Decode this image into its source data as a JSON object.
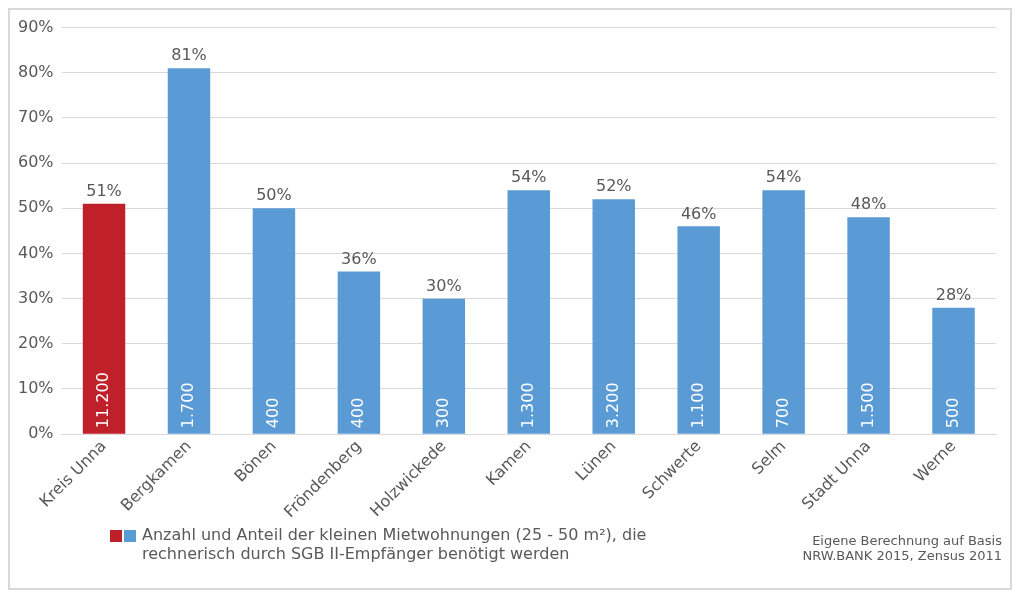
{
  "chart_data": {
    "type": "bar",
    "categories": [
      "Kreis Unna",
      "Bergkamen",
      "Bönen",
      "Fröndenberg",
      "Holzwickede",
      "Kamen",
      "Lünen",
      "Schwerte",
      "Selm",
      "Stadt Unna",
      "Werne"
    ],
    "series": [
      {
        "name": "Anzahl und Anteil der kleinen Mietwohnungen (25 - 50 m²), die rechnerisch durch SGB II-Empfänger benötigt werden",
        "colors": [
          "#c0202a",
          "#5b9bd5",
          "#5b9bd5",
          "#5b9bd5",
          "#5b9bd5",
          "#5b9bd5",
          "#5b9bd5",
          "#5b9bd5",
          "#5b9bd5",
          "#5b9bd5",
          "#5b9bd5"
        ],
        "values": [
          51,
          81,
          50,
          36,
          30,
          54,
          52,
          46,
          54,
          48,
          28
        ],
        "value_labels": [
          "51%",
          "81%",
          "50%",
          "36%",
          "30%",
          "54%",
          "52%",
          "46%",
          "54%",
          "48%",
          "28%"
        ]
      }
    ],
    "ylim": [
      0,
      90
    ],
    "yticks": [
      {
        "value": 0,
        "label": "0%"
      },
      {
        "value": 10,
        "label": "10%"
      },
      {
        "value": 20,
        "label": "20%"
      },
      {
        "value": 30,
        "label": "30%"
      },
      {
        "value": 40,
        "label": "40%"
      },
      {
        "value": 50,
        "label": "50%"
      },
      {
        "value": 60,
        "label": "60%"
      },
      {
        "value": 70,
        "label": "70%"
      },
      {
        "value": 80,
        "label": "80%"
      },
      {
        "value": 90,
        "label": "90%"
      }
    ],
    "grid": "y",
    "legend": "bottom",
    "annotations": [
      {
        "text": "11.200",
        "x": "Kreis Unna",
        "y": 0
      },
      {
        "text": "1.700",
        "x": "Bergkamen",
        "y": 0
      },
      {
        "text": "400",
        "x": "Bönen",
        "y": 0
      },
      {
        "text": "400",
        "x": "Fröndenberg",
        "y": 0
      },
      {
        "text": "300",
        "x": "Holzwickede",
        "y": 0
      },
      {
        "text": "1.300",
        "x": "Kamen",
        "y": 0
      },
      {
        "text": "3.200",
        "x": "Lünen",
        "y": 0
      },
      {
        "text": "1.100",
        "x": "Schwerte",
        "y": 0
      },
      {
        "text": "700",
        "x": "Selm",
        "y": 0
      },
      {
        "text": "1.500",
        "x": "Stadt Unna",
        "y": 0
      },
      {
        "text": "500",
        "x": "Werne",
        "y": 0
      },
      "Eigene Berechnung auf Basis NRW.BANK 2015, Zensus 2011"
    ]
  }
}
